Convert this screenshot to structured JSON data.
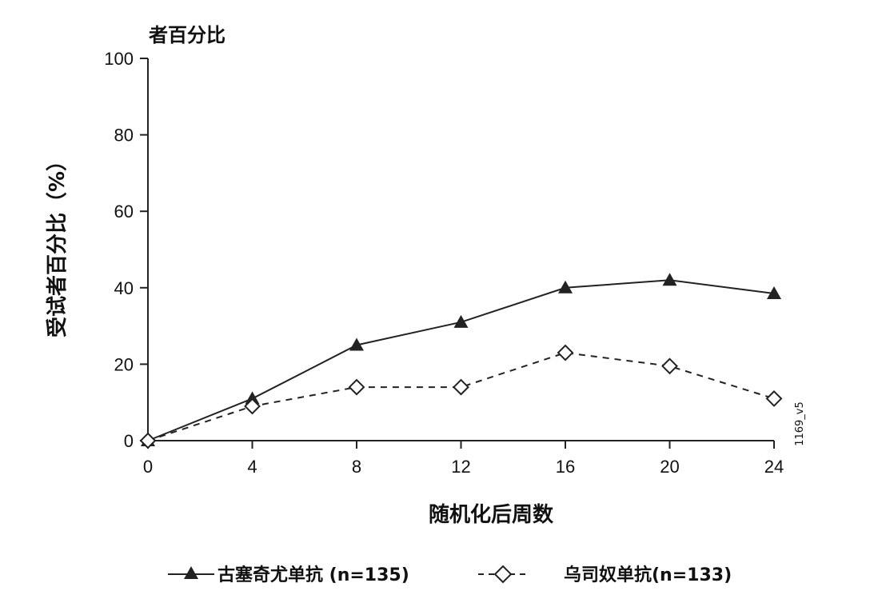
{
  "chart_data": {
    "type": "line",
    "title": "者百分比",
    "xlabel": "随机化后周数",
    "ylabel": "受试者百分比（%）",
    "x": [
      0,
      4,
      8,
      12,
      16,
      20,
      24
    ],
    "xticks": [
      "0",
      "4",
      "8",
      "12",
      "16",
      "20",
      "24"
    ],
    "yticks": [
      "0",
      "20",
      "40",
      "60",
      "80",
      "100"
    ],
    "xlim": [
      0,
      24
    ],
    "ylim": [
      0,
      100
    ],
    "grid": false,
    "legend_position": "bottom",
    "series": [
      {
        "name": "古塞奇尤单抗 (n=135)",
        "style": "solid",
        "marker": "filled-triangle",
        "color": "#222222",
        "values": [
          0,
          11,
          25,
          31,
          40,
          42,
          38.5
        ]
      },
      {
        "name": "乌司奴单抗(n=133)",
        "style": "dashed",
        "marker": "open-diamond",
        "color": "#222222",
        "values": [
          0,
          9,
          14,
          14,
          23,
          19.5,
          11
        ]
      }
    ],
    "annotation": "1169_v5"
  }
}
